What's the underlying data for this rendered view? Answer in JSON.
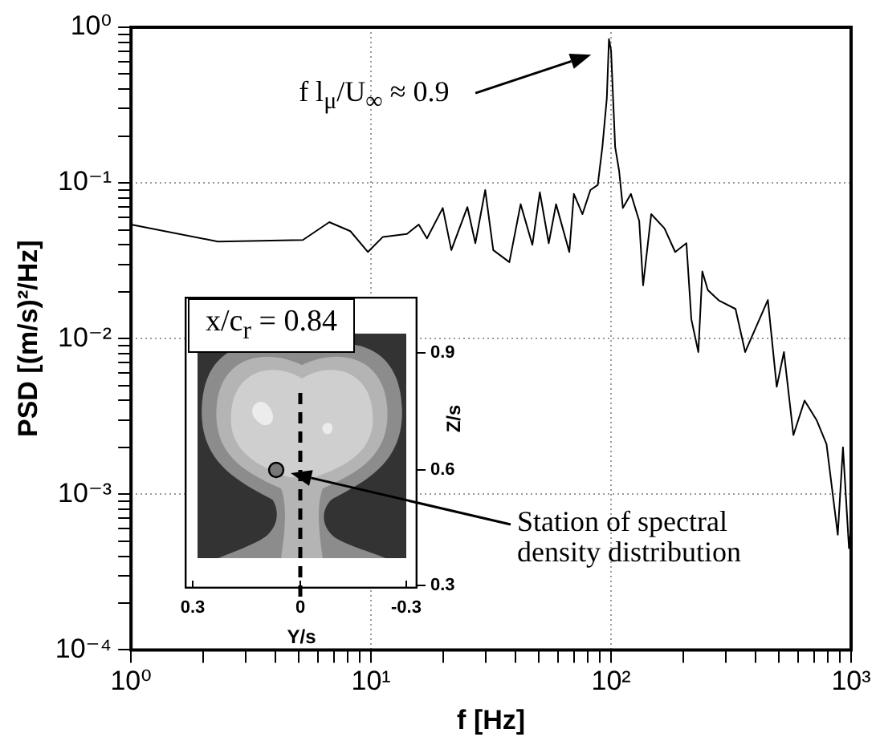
{
  "chart_data": [
    {
      "type": "line",
      "xlabel": "f [Hz]",
      "ylabel": "PSD [(m/s)²/Hz]",
      "log": "xy",
      "grid": true,
      "marker": "none",
      "line_style": "solid",
      "xlim": [
        1,
        1000
      ],
      "ylim": [
        0.0001,
        1
      ],
      "xticks": [
        {
          "value": 1,
          "label": "10⁰"
        },
        {
          "value": 2,
          "label": null
        },
        {
          "value": 3,
          "label": null
        },
        {
          "value": 4,
          "label": null
        },
        {
          "value": 5,
          "label": null
        },
        {
          "value": 6,
          "label": null
        },
        {
          "value": 7,
          "label": null
        },
        {
          "value": 8,
          "label": null
        },
        {
          "value": 9,
          "label": null
        },
        {
          "value": 10,
          "label": "10¹"
        },
        {
          "value": 20,
          "label": null
        },
        {
          "value": 30,
          "label": null
        },
        {
          "value": 40,
          "label": null
        },
        {
          "value": 50,
          "label": null
        },
        {
          "value": 60,
          "label": null
        },
        {
          "value": 70,
          "label": null
        },
        {
          "value": 80,
          "label": null
        },
        {
          "value": 90,
          "label": null
        },
        {
          "value": 100,
          "label": "10²"
        },
        {
          "value": 200,
          "label": null
        },
        {
          "value": 300,
          "label": null
        },
        {
          "value": 400,
          "label": null
        },
        {
          "value": 500,
          "label": null
        },
        {
          "value": 600,
          "label": null
        },
        {
          "value": 700,
          "label": null
        },
        {
          "value": 800,
          "label": null
        },
        {
          "value": 900,
          "label": null
        },
        {
          "value": 1000,
          "label": "10³"
        }
      ],
      "yticks": [
        {
          "value": 0.0001,
          "label": "10⁻⁴"
        },
        {
          "value": 0.0002,
          "label": null
        },
        {
          "value": 0.0003,
          "label": null
        },
        {
          "value": 0.0004,
          "label": null
        },
        {
          "value": 0.0005,
          "label": null
        },
        {
          "value": 0.0006,
          "label": null
        },
        {
          "value": 0.0007,
          "label": null
        },
        {
          "value": 0.0008,
          "label": null
        },
        {
          "value": 0.0009,
          "label": null
        },
        {
          "value": 0.001,
          "label": "10⁻³"
        },
        {
          "value": 0.002,
          "label": null
        },
        {
          "value": 0.003,
          "label": null
        },
        {
          "value": 0.004,
          "label": null
        },
        {
          "value": 0.005,
          "label": null
        },
        {
          "value": 0.006,
          "label": null
        },
        {
          "value": 0.007,
          "label": null
        },
        {
          "value": 0.008,
          "label": null
        },
        {
          "value": 0.009,
          "label": null
        },
        {
          "value": 0.01,
          "label": "10⁻²"
        },
        {
          "value": 0.02,
          "label": null
        },
        {
          "value": 0.03,
          "label": null
        },
        {
          "value": 0.04,
          "label": null
        },
        {
          "value": 0.05,
          "label": null
        },
        {
          "value": 0.06,
          "label": null
        },
        {
          "value": 0.07,
          "label": null
        },
        {
          "value": 0.08,
          "label": null
        },
        {
          "value": 0.09,
          "label": null
        },
        {
          "value": 0.1,
          "label": "10⁻¹"
        },
        {
          "value": 0.2,
          "label": null
        },
        {
          "value": 0.3,
          "label": null
        },
        {
          "value": 0.4,
          "label": null
        },
        {
          "value": 0.5,
          "label": null
        },
        {
          "value": 0.6,
          "label": null
        },
        {
          "value": 0.7,
          "label": null
        },
        {
          "value": 0.8,
          "label": null
        },
        {
          "value": 0.9,
          "label": null
        },
        {
          "value": 1,
          "label": "10⁰"
        }
      ],
      "series": [
        {
          "color": "#000000",
          "x": [
            1,
            2.3,
            5.2,
            6.7,
            8.2,
            9.7,
            11.2,
            14.1,
            15.8,
            17.1,
            19.9,
            21.6,
            25.2,
            27.2,
            29.9,
            32.3,
            37.7,
            42,
            47,
            50.5,
            55,
            59,
            67,
            70,
            76,
            82,
            88,
            92,
            96,
            98,
            100,
            104,
            108,
            112,
            121,
            131,
            136,
            147,
            167,
            185,
            206,
            216,
            231,
            240,
            253,
            281,
            330,
            362,
            450,
            490,
            525,
            575,
            640,
            718,
            790,
            880,
            925,
            980,
            1000
          ],
          "values": [
            0.054,
            0.042,
            0.043,
            0.056,
            0.049,
            0.036,
            0.045,
            0.047,
            0.054,
            0.044,
            0.069,
            0.037,
            0.07,
            0.041,
            0.09,
            0.037,
            0.031,
            0.073,
            0.04,
            0.087,
            0.041,
            0.073,
            0.036,
            0.085,
            0.063,
            0.09,
            0.097,
            0.17,
            0.35,
            0.84,
            0.71,
            0.17,
            0.12,
            0.069,
            0.085,
            0.057,
            0.022,
            0.063,
            0.051,
            0.036,
            0.041,
            0.0133,
            0.0082,
            0.027,
            0.0205,
            0.0176,
            0.0155,
            0.0082,
            0.0177,
            0.0049,
            0.0082,
            0.0024,
            0.004,
            0.003,
            0.0021,
            0.00055,
            0.002,
            0.00045,
            0.00063
          ]
        }
      ],
      "annotations": [
        "f l$_{μ}$/U$_{∞}$ ≈ 0.9"
      ]
    },
    {
      "type": "other",
      "title": "x/c$_{r}$ = 0.84",
      "xlabel": "Y/s",
      "ylabel": "Z/s",
      "annotations": [
        "0.3",
        "0",
        "-0.3",
        "0.9",
        "0.6",
        "0.3",
        "Station of spectral density distribution"
      ]
    }
  ]
}
